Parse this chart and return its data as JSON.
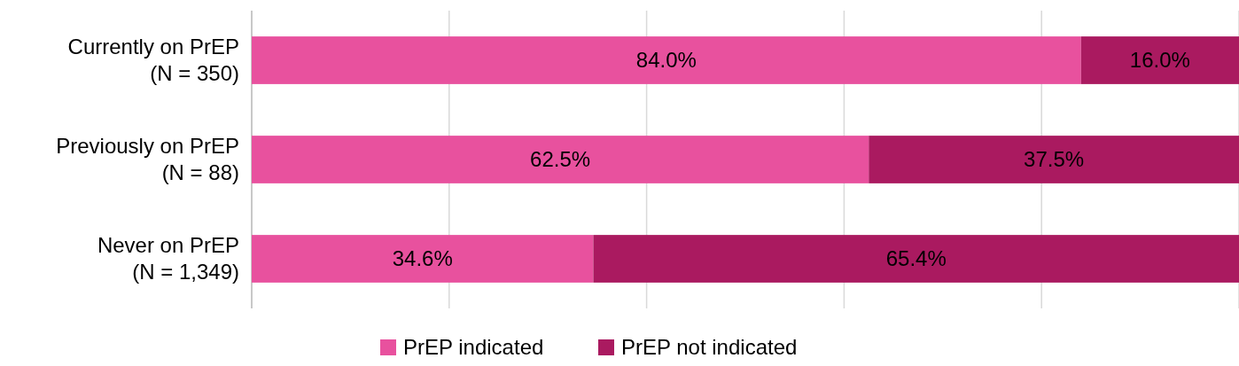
{
  "chart_data": {
    "type": "bar",
    "orientation": "horizontal",
    "stacked": true,
    "categories": [
      "Currently on PrEP\n(N = 350)",
      "Previously on PrEP\n(N = 88)",
      "Never on PrEP\n(N = 1,349)"
    ],
    "series": [
      {
        "name": "PrEP indicated",
        "color": "#e8519e",
        "values": [
          84.0,
          62.5,
          34.6
        ],
        "value_labels": [
          "84.0%",
          "62.5%",
          "34.6%"
        ]
      },
      {
        "name": "PrEP not indicated",
        "color": "#aa1a60",
        "values": [
          16.0,
          37.5,
          65.4
        ],
        "value_labels": [
          "16.0%",
          "37.5%",
          "65.4%"
        ]
      }
    ],
    "xlim": [
      0,
      100
    ],
    "xticks": [
      {
        "value": 0,
        "label": null
      },
      {
        "value": 20,
        "label": null
      },
      {
        "value": 40,
        "label": null
      },
      {
        "value": 60,
        "label": null
      },
      {
        "value": 80,
        "label": null
      },
      {
        "value": 100,
        "label": null
      }
    ],
    "grid": "x",
    "tick_labels": "y",
    "legend": "bottom"
  }
}
